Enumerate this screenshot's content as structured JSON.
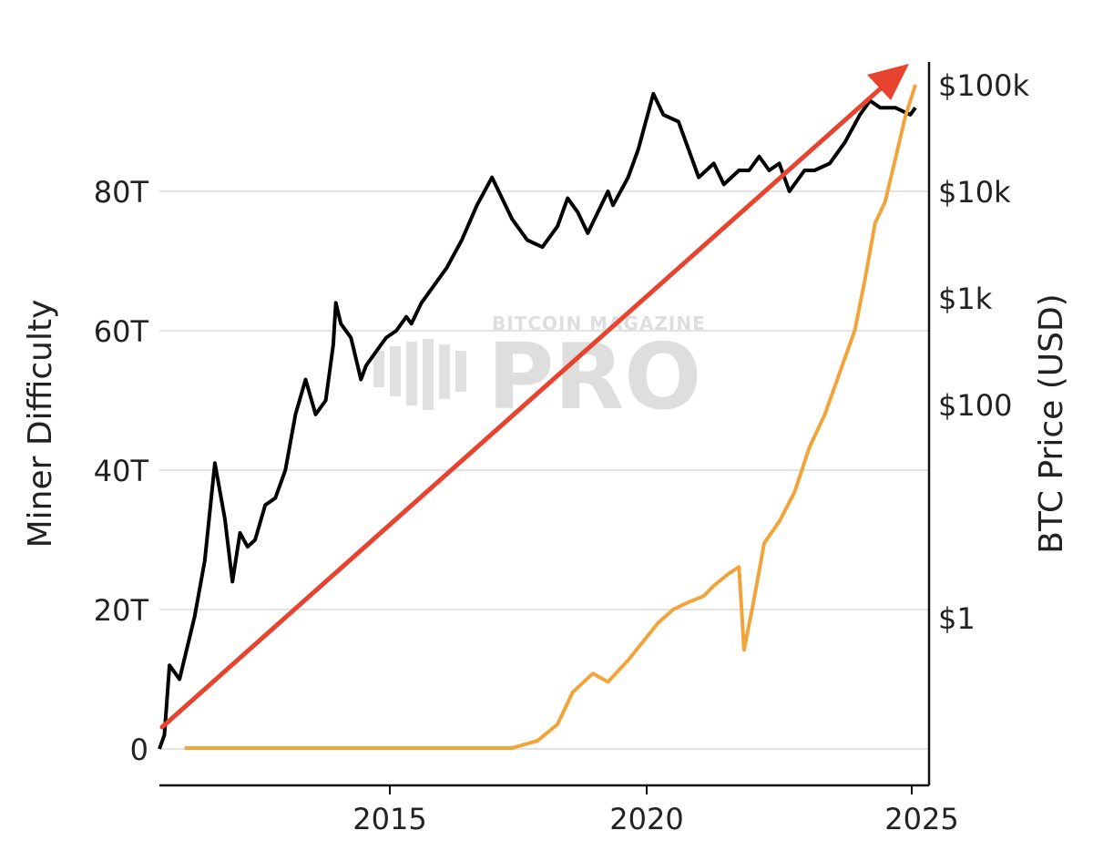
{
  "watermark": {
    "top": "BITCOIN MAGAZINE",
    "main": "PRO"
  },
  "colors": {
    "difficulty": "#000000",
    "price": "#f2a43b",
    "trend_arrow": "#e8432e",
    "grid": "#e3e3e3",
    "axis": "#111111"
  },
  "chart_data": {
    "type": "line",
    "xlabel": "",
    "ylabel_left": "Miner Difficulty",
    "ylabel_right": "BTC Price (USD)",
    "x_ticks": [
      "2015",
      "2020",
      "2025"
    ],
    "y_left_ticks": [
      "0",
      "20T",
      "40T",
      "60T",
      "80T"
    ],
    "y_right_ticks": [
      "$1",
      "$100",
      "$1k",
      "$10k",
      "$100k"
    ],
    "y_right_scale": "log",
    "y_right_tick_values": [
      1,
      100,
      1000,
      10000,
      100000
    ],
    "xlim": [
      2010.0,
      2025.0
    ],
    "grid": "horizontal",
    "annotations": [
      {
        "type": "arrow",
        "color": "red",
        "from": "bottom-left",
        "to": "top-right"
      }
    ],
    "series": [
      {
        "kind": "difficulty",
        "axis": "left",
        "x": [
          2010.0,
          2010.1,
          2010.2,
          2010.4,
          2010.7,
          2010.9,
          2011.1,
          2011.3,
          2011.45,
          2011.6,
          2011.75,
          2011.9,
          2012.1,
          2012.3,
          2012.5,
          2012.7,
          2012.9,
          2013.1,
          2013.3,
          2013.45,
          2013.5,
          2013.6,
          2013.8,
          2013.9,
          2014.0,
          2014.1,
          2014.3,
          2014.5,
          2014.7,
          2014.9,
          2015.0,
          2015.2,
          2015.4,
          2015.7,
          2016.0,
          2016.3,
          2016.6,
          2017.0,
          2017.3,
          2017.6,
          2017.9,
          2018.1,
          2018.3,
          2018.5,
          2018.9,
          2019.0,
          2019.3,
          2019.5,
          2019.8,
          2020.0,
          2020.3,
          2020.5,
          2020.7,
          2021.0,
          2021.2,
          2021.5,
          2021.7,
          2021.9,
          2022.1,
          2022.3,
          2022.5,
          2022.8,
          2023.0,
          2023.3,
          2023.6,
          2023.9,
          2024.1,
          2024.3,
          2024.6,
          2024.9,
          2025.0
        ],
        "y": [
          0,
          2,
          12,
          10,
          19,
          27,
          41,
          33,
          24,
          31,
          29,
          30,
          35,
          36,
          40,
          48,
          53,
          48,
          50,
          58,
          64,
          61,
          59,
          56,
          53,
          55,
          57,
          59,
          60,
          62,
          61,
          64,
          66,
          69,
          73,
          78,
          82,
          76,
          73,
          72,
          75,
          79,
          77,
          74,
          80,
          78,
          82,
          86,
          94,
          91,
          90,
          86,
          82,
          84,
          81,
          83,
          83,
          85,
          83,
          84,
          80,
          83,
          83,
          84,
          87,
          91,
          93,
          92,
          92,
          91,
          92
        ]
      },
      {
        "kind": "price",
        "axis": "right",
        "x": [
          2010.5,
          2011.5,
          2012.5,
          2013.5,
          2014.5,
          2015.5,
          2016.5,
          2017.0,
          2017.5,
          2017.9,
          2018.2,
          2018.6,
          2018.9,
          2019.3,
          2019.6,
          2019.9,
          2020.2,
          2020.5,
          2020.8,
          2021.0,
          2021.3,
          2021.5,
          2021.6,
          2021.8,
          2022.0,
          2022.3,
          2022.6,
          2022.9,
          2023.2,
          2023.5,
          2023.8,
          2024.0,
          2024.2,
          2024.4,
          2024.6,
          2024.8,
          2025.0
        ],
        "y": [
          0.06,
          0.06,
          0.06,
          0.06,
          0.06,
          0.06,
          0.06,
          0.06,
          0.07,
          0.1,
          0.2,
          0.3,
          0.25,
          0.4,
          0.6,
          0.9,
          1.2,
          1.4,
          1.6,
          2.0,
          2.6,
          3.0,
          0.5,
          1.5,
          5,
          8,
          15,
          40,
          80,
          200,
          500,
          1500,
          5000,
          8000,
          20000,
          50000,
          100000
        ]
      }
    ]
  }
}
